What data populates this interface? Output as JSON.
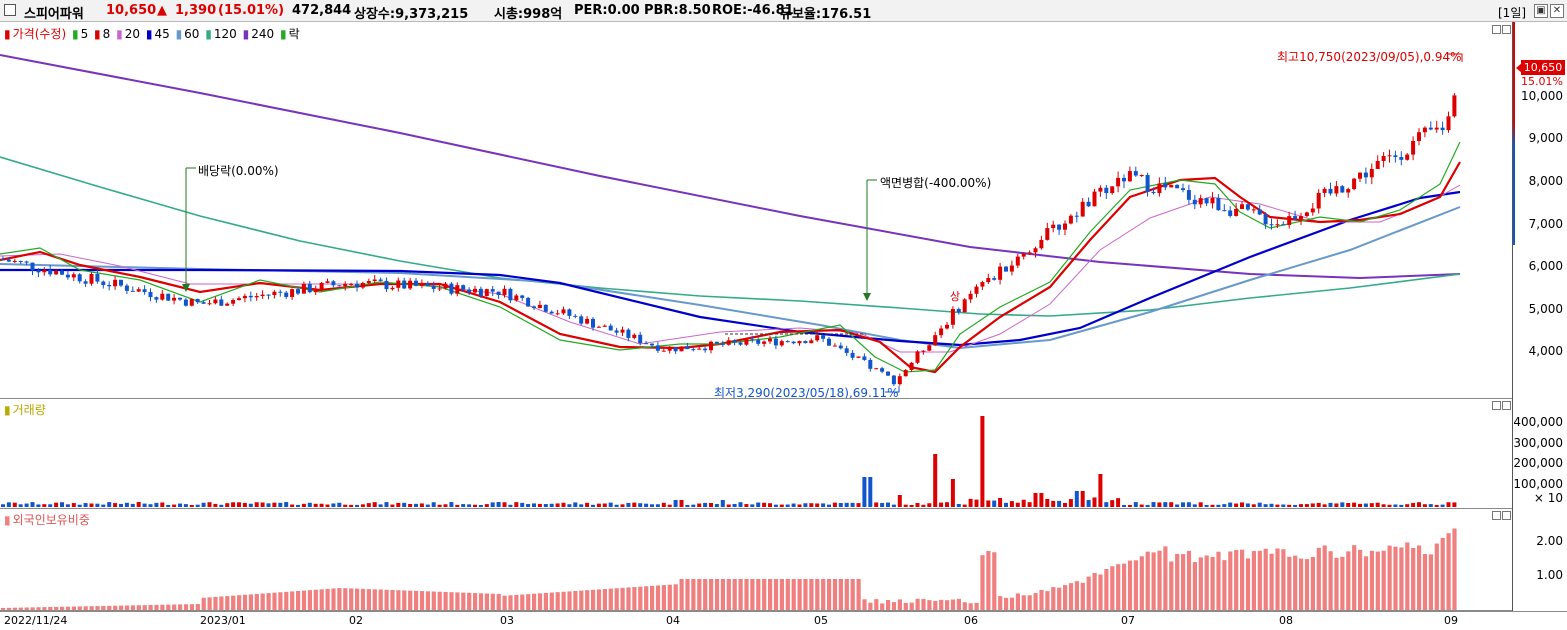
{
  "header": {
    "name": "스피어파워",
    "price": "10,650",
    "change_arrow": "▲",
    "change": "1,390",
    "change_pct": "(15.01%)",
    "volume": "472,844",
    "listed": "상장수:9,373,215",
    "mktcap": "시총:998억",
    "per": "PER:0.00",
    "pbr": "PBR:8.50",
    "roe": "ROE:-46.81",
    "float": "유보율:176.51",
    "period": "[1일]"
  },
  "legend": {
    "price": "가격(수정)",
    "ma": [
      {
        "label": "5",
        "color": "#22aa22"
      },
      {
        "label": "8",
        "color": "#dd0000"
      },
      {
        "label": "20",
        "color": "#cc66cc"
      },
      {
        "label": "45",
        "color": "#0000cc"
      },
      {
        "label": "60",
        "color": "#6699cc"
      },
      {
        "label": "120",
        "color": "#33aa88"
      },
      {
        "label": "240",
        "color": "#7733bb"
      }
    ],
    "rak": "락",
    "volume": "거래량",
    "foreign": "외국인보유비중"
  },
  "annotations": {
    "high": "최고10,750(2023/09/05),0.94%",
    "low": "최저3,290(2023/05/18),69.11%",
    "dividend": "배당락(0.00%)",
    "split": "액면병합(-400.00%)",
    "sang": "상"
  },
  "price_axis": {
    "current": "10,650",
    "current_pct": "15.01%",
    "ticks": [
      "10,000",
      "9,000",
      "8,000",
      "7,000",
      "6,000",
      "5,000",
      "4,000"
    ]
  },
  "volume_axis": {
    "ticks": [
      "400,000",
      "300,000",
      "200,000",
      "100,000"
    ],
    "unit": "× 10"
  },
  "foreign_axis": {
    "ticks": [
      "2.00",
      "1.00"
    ]
  },
  "x_axis": [
    "2022/11/24",
    "2023/01",
    "02",
    "03",
    "04",
    "05",
    "06",
    "07",
    "08",
    "09"
  ],
  "colors": {
    "up": "#dd0000",
    "down": "#1155cc",
    "foreign": "#f08080"
  },
  "chart_data": {
    "type": "candlestick",
    "price_range": [
      3000,
      11200
    ],
    "anchors": [
      {
        "label": "2022/11/24",
        "close": 6150
      },
      {
        "label": "2023/01",
        "close": 5100
      },
      {
        "label": "02",
        "close": 5600
      },
      {
        "label": "03",
        "close": 5400
      },
      {
        "label": "04",
        "close": 4050
      },
      {
        "label": "05",
        "close": 4300
      },
      {
        "label": "2023/05/18",
        "close": 3290
      },
      {
        "label": "06",
        "close": 5200
      },
      {
        "label": "07",
        "close": 8100
      },
      {
        "label": "08",
        "close": 7000
      },
      {
        "label": "09",
        "close": 9300
      },
      {
        "label": "2023/09/05",
        "close": 10650
      }
    ],
    "high": 10750,
    "low": 3290
  }
}
